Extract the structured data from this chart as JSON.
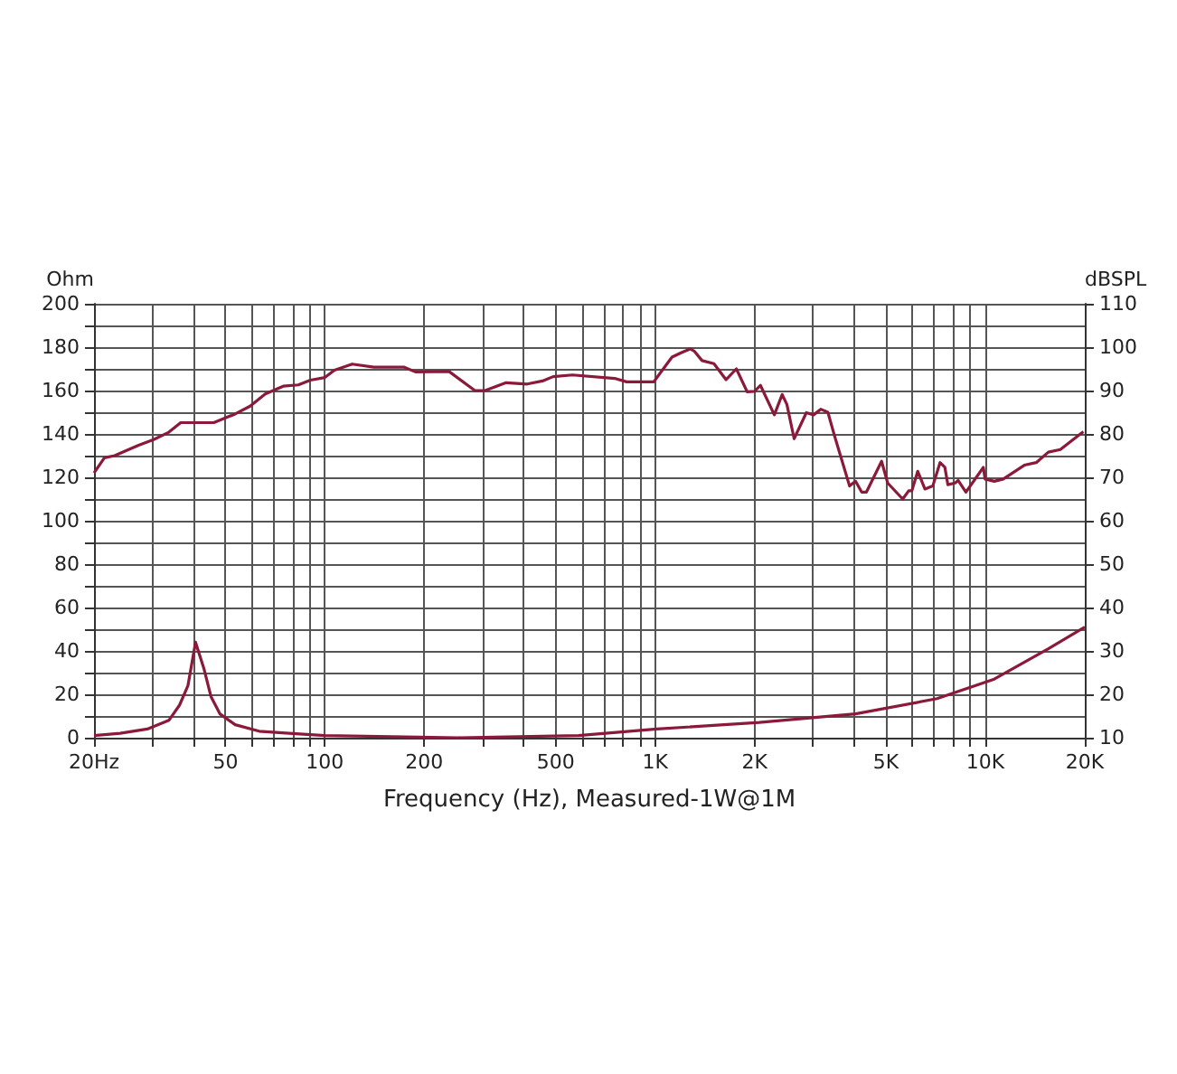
{
  "chart_data": {
    "type": "line",
    "xlabel": "Frequency (Hz), Measured-1W@1M",
    "ylabel": "Ohm",
    "y2label": "dBSPL",
    "log": "x",
    "grid": true,
    "marker": "none",
    "line_style": "solid",
    "xlim": [
      20,
      20000
    ],
    "xticks": [
      {
        "value": 20,
        "label": "20Hz"
      },
      {
        "value": 30,
        "label": null
      },
      {
        "value": 40,
        "label": null
      },
      50,
      {
        "value": 60,
        "label": null
      },
      {
        "value": 70,
        "label": null
      },
      {
        "value": 80,
        "label": null
      },
      {
        "value": 90,
        "label": null
      },
      100,
      {
        "value": 300,
        "label": null
      },
      {
        "value": 400,
        "label": null
      },
      200,
      500,
      {
        "value": 600,
        "label": null
      },
      {
        "value": 700,
        "label": null
      },
      {
        "value": 800,
        "label": null
      },
      {
        "value": 900,
        "label": null
      },
      {
        "value": 1000,
        "label": "1K"
      },
      {
        "value": 2000,
        "label": "2K"
      },
      {
        "value": 3000,
        "label": null
      },
      {
        "value": 4000,
        "label": null
      },
      {
        "value": 5000,
        "label": "5K"
      },
      {
        "value": 6000,
        "label": null
      },
      {
        "value": 7000,
        "label": null
      },
      {
        "value": 8000,
        "label": null
      },
      {
        "value": 9000,
        "label": null
      },
      {
        "value": 10000,
        "label": "10K"
      },
      {
        "value": 20000,
        "label": "20K"
      }
    ],
    "ylim": [
      0,
      200
    ],
    "yticks": [
      0,
      {
        "value": 10,
        "label": null
      },
      20,
      {
        "value": 30,
        "label": null
      },
      40,
      {
        "value": 50,
        "label": null
      },
      60,
      {
        "value": 70,
        "label": null
      },
      80,
      {
        "value": 90,
        "label": null
      },
      100,
      {
        "value": 110,
        "label": null
      },
      120,
      {
        "value": 130,
        "label": null
      },
      140,
      {
        "value": 150,
        "label": null
      },
      160,
      {
        "value": 170,
        "label": null
      },
      180,
      {
        "value": 190,
        "label": null
      },
      200
    ],
    "y2lim": [
      10,
      110
    ],
    "y2ticks": [
      10,
      20,
      30,
      40,
      50,
      60,
      70,
      80,
      90,
      100,
      110
    ],
    "series": [
      {
        "color": "#8b1a3a",
        "axis": "y2",
        "x": [
          20,
          21.5,
          23.1,
          25.1,
          27.3,
          30.3,
          33.7,
          36.6,
          46.1,
          53.5,
          59.4,
          66,
          74.8,
          83.1,
          90.4,
          100,
          106.9,
          121,
          140.7,
          173.4,
          188,
          237.7,
          284.6,
          305.6,
          354,
          410,
          456,
          491,
          562,
          754,
          820,
          991,
          1033,
          1125,
          1198,
          1277,
          1313,
          1387,
          1507,
          1640,
          1762,
          1900,
          2000,
          2084,
          2296,
          2425,
          2506,
          2636,
          2870,
          3019,
          3173,
          3335,
          3492,
          3880,
          4045,
          4220,
          4364,
          4850,
          5060,
          5620,
          5860,
          5990,
          6240,
          6560,
          6930,
          7290,
          7540,
          7700,
          8100,
          8270,
          8730,
          9860,
          9980,
          10640,
          11330,
          13120,
          14260,
          15510,
          16870,
          18360,
          19800
        ],
        "values": [
          71,
          74.5,
          75,
          76.2,
          77.4,
          78.7,
          80.4,
          82.6,
          82.6,
          84.6,
          86.4,
          89.2,
          91,
          91.3,
          92.4,
          93,
          94.7,
          96.1,
          95.4,
          95.4,
          94.3,
          94.4,
          90,
          90,
          91.8,
          91.5,
          92.2,
          93.2,
          93.6,
          92.8,
          92,
          92,
          93.9,
          97.7,
          98.7,
          99.6,
          99.1,
          96.9,
          96.2,
          92.5,
          95,
          89.7,
          89.8,
          91.2,
          84.4,
          89.1,
          86.8,
          78.9,
          84.9,
          84.4,
          85.7,
          85,
          79.6,
          68,
          69.1,
          66.6,
          66.6,
          73.7,
          68.7,
          65,
          66.9,
          66.9,
          71.4,
          67.3,
          68,
          73.4,
          72.3,
          68.3,
          68.7,
          69.3,
          66.6,
          72.3,
          69.6,
          69.1,
          69.6,
          72.8,
          73.4,
          75.8,
          76.4,
          78.6,
          80.5
        ]
      },
      {
        "color": "#8b1a3a",
        "x": [
          20,
          24,
          29,
          33.7,
          36.3,
          38.5,
          40.6,
          43,
          45.2,
          48.1,
          53.5,
          63.2,
          78,
          100,
          253,
          586,
          1011,
          2066,
          4045,
          7140,
          10640,
          15510,
          20000
        ],
        "values": [
          1,
          2,
          4,
          8,
          15,
          24,
          44,
          32,
          19,
          11,
          6,
          3,
          2,
          1,
          0,
          1,
          4,
          7,
          11,
          18,
          27,
          41,
          51
        ]
      }
    ]
  }
}
